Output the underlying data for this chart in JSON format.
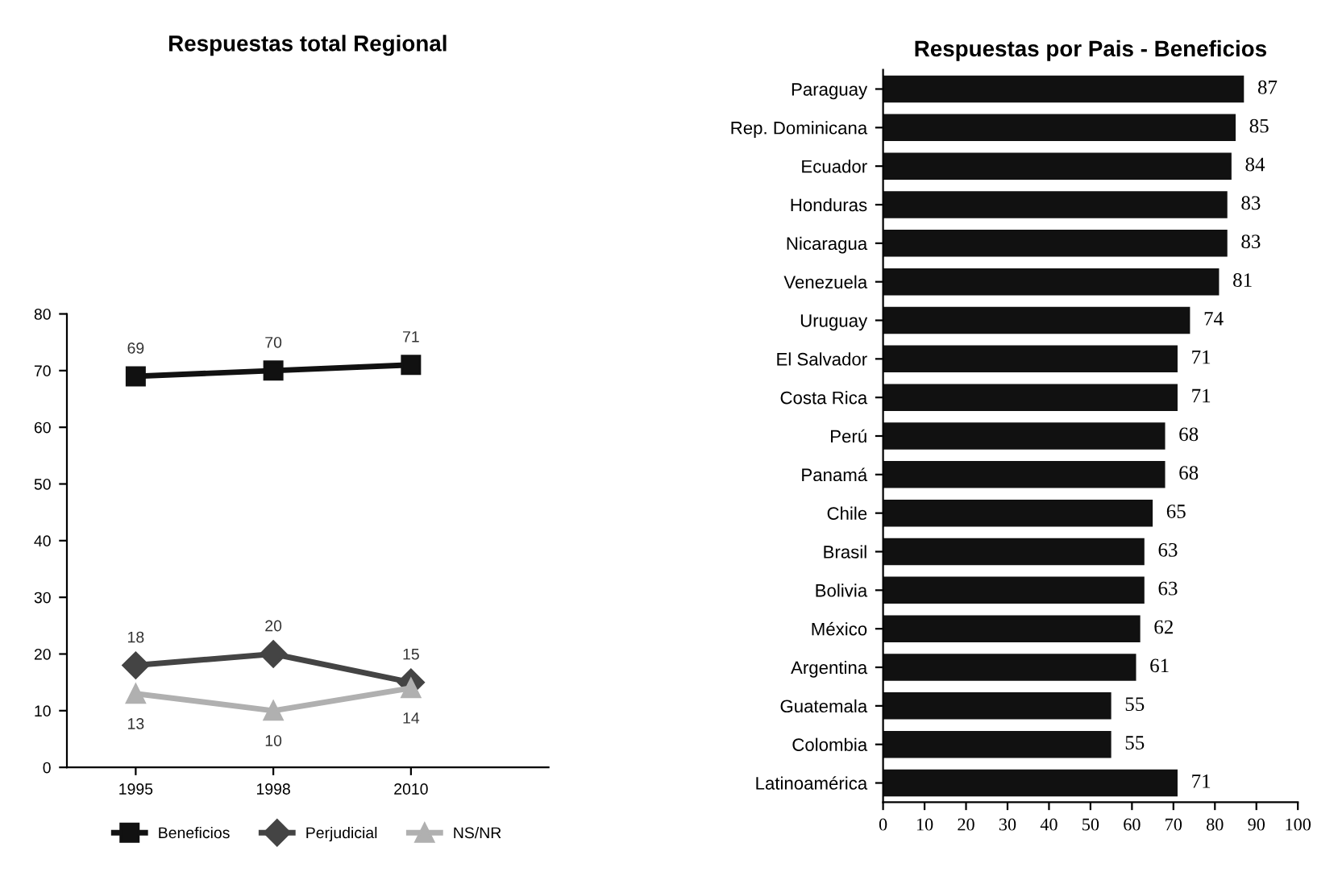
{
  "chart_data": [
    {
      "type": "line",
      "title": "Respuestas total Regional",
      "categories": [
        "1995",
        "1998",
        "2010"
      ],
      "ylim": [
        0,
        80
      ],
      "yticks": [
        0,
        10,
        20,
        30,
        40,
        50,
        60,
        70,
        80
      ],
      "data_labels": true,
      "legend": "bottom",
      "grid": false,
      "series": [
        {
          "name": "Beneficios",
          "color": "#111111",
          "marker": "square",
          "values": [
            69,
            70,
            71
          ]
        },
        {
          "name": "Perjudicial",
          "color": "#444444",
          "marker": "diamond",
          "values": [
            18,
            20,
            15
          ]
        },
        {
          "name": "NS/NR",
          "color": "#b0b0b0",
          "marker": "triangle",
          "values": [
            13,
            10,
            14
          ]
        }
      ]
    },
    {
      "type": "bar",
      "orientation": "horizontal",
      "title": "Respuestas por Pais - Beneficios",
      "categories": [
        "Paraguay",
        "Rep. Dominicana",
        "Ecuador",
        "Honduras",
        "Nicaragua",
        "Venezuela",
        "Uruguay",
        "El Salvador",
        "Costa Rica",
        "Perú",
        "Panamá",
        "Chile",
        "Brasil",
        "Bolivia",
        "México",
        "Argentina",
        "Guatemala",
        "Colombia",
        "Latinoamérica"
      ],
      "values": [
        87,
        85,
        84,
        83,
        83,
        81,
        74,
        71,
        71,
        68,
        68,
        65,
        63,
        63,
        62,
        61,
        55,
        55,
        71
      ],
      "color": "#111111",
      "xlim": [
        0,
        100
      ],
      "xticks": [
        0,
        10,
        20,
        30,
        40,
        50,
        60,
        70,
        80,
        90,
        100
      ],
      "data_labels": true,
      "grid": false
    }
  ]
}
